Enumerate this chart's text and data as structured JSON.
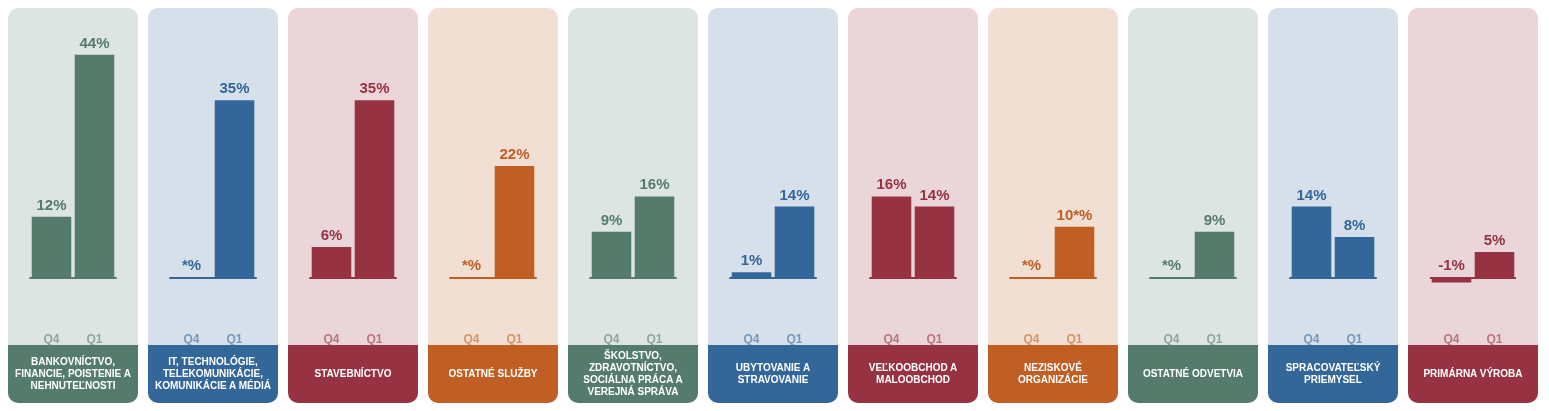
{
  "chart_data": [
    {
      "type": "bar",
      "title": "BANKOVNÍCTVO, FINANCIE, POISTENIE A NEHNUTEĽNOSTI",
      "categories": [
        "Q4",
        "Q1"
      ],
      "values": [
        12,
        44
      ],
      "value_labels": [
        "12%",
        "44%"
      ],
      "color": "#557b6d"
    },
    {
      "type": "bar",
      "title": "IT, TECHNOLÓGIE, TELEKOMUNIKÁCIE, KOMUNIKÁCIE A MÉDIÁ",
      "categories": [
        "Q4",
        "Q1"
      ],
      "values": [
        null,
        35
      ],
      "value_labels": [
        "*%",
        "35%"
      ],
      "color": "#336699"
    },
    {
      "type": "bar",
      "title": "STAVEBNÍCTVO",
      "categories": [
        "Q4",
        "Q1"
      ],
      "values": [
        6,
        35
      ],
      "value_labels": [
        "6%",
        "35%"
      ],
      "color": "#963242"
    },
    {
      "type": "bar",
      "title": "OSTATNÉ SLUŽBY",
      "categories": [
        "Q4",
        "Q1"
      ],
      "values": [
        null,
        22
      ],
      "value_labels": [
        "*%",
        "22%"
      ],
      "color": "#c05e23"
    },
    {
      "type": "bar",
      "title": "ŠKOLSTVO, ZDRAVOTNÍCTVO, SOCIÁLNA PRÁCA A VEREJNÁ SPRÁVA",
      "categories": [
        "Q4",
        "Q1"
      ],
      "values": [
        9,
        16
      ],
      "value_labels": [
        "9%",
        "16%"
      ],
      "color": "#557b6d"
    },
    {
      "type": "bar",
      "title": "UBYTOVANIE A STRAVOVANIE",
      "categories": [
        "Q4",
        "Q1"
      ],
      "values": [
        1,
        14
      ],
      "value_labels": [
        "1%",
        "14%"
      ],
      "color": "#336699"
    },
    {
      "type": "bar",
      "title": "VEĽKOOBCHOD A MALOOBCHOD",
      "categories": [
        "Q4",
        "Q1"
      ],
      "values": [
        16,
        14
      ],
      "value_labels": [
        "16%",
        "14%"
      ],
      "color": "#963242"
    },
    {
      "type": "bar",
      "title": "NEZISKOVÉ ORGANIZÁCIE",
      "categories": [
        "Q4",
        "Q1"
      ],
      "values": [
        null,
        10
      ],
      "value_labels": [
        "*%",
        "10*%"
      ],
      "color": "#c05e23"
    },
    {
      "type": "bar",
      "title": "OSTATNÉ ODVETVIA",
      "categories": [
        "Q4",
        "Q1"
      ],
      "values": [
        null,
        9
      ],
      "value_labels": [
        "*%",
        "9%"
      ],
      "color": "#557b6d"
    },
    {
      "type": "bar",
      "title": "SPRACOVATEĽSKÝ PRIEMYSEL",
      "categories": [
        "Q4",
        "Q1"
      ],
      "values": [
        14,
        8
      ],
      "value_labels": [
        "14%",
        "8%"
      ],
      "color": "#336699"
    },
    {
      "type": "bar",
      "title": "PRIMÁRNA VÝROBA",
      "categories": [
        "Q4",
        "Q1"
      ],
      "values": [
        -1,
        5
      ],
      "value_labels": [
        "-1%",
        "5%"
      ],
      "color": "#963242",
      "ref_lines": [
        {
          "axis": "y",
          "value": 0
        }
      ]
    }
  ]
}
